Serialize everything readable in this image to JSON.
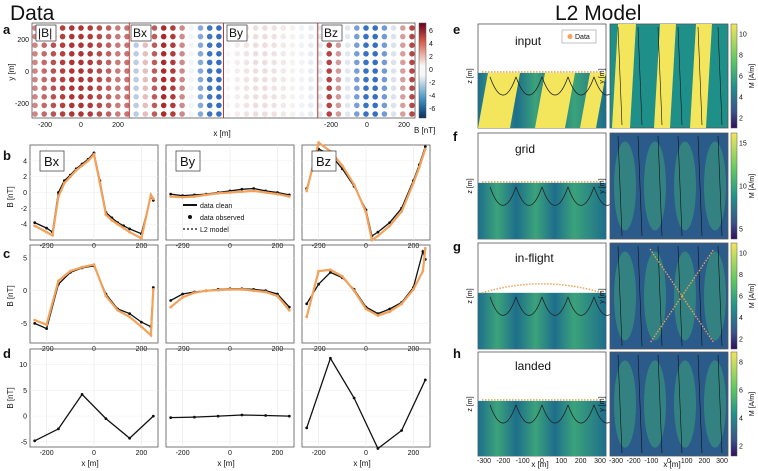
{
  "headers": {
    "left": "Data",
    "right": "L2 Model"
  },
  "panel_letters": [
    "a",
    "b",
    "c",
    "d",
    "e",
    "f",
    "g",
    "h"
  ],
  "panel_a": {
    "insets": [
      "|B|",
      "Bx",
      "By",
      "Bz"
    ],
    "ylabel": "y [m]",
    "xlabel": "x [m]",
    "colorbar_label": "B [nT]",
    "colorbar_ticks": [
      "6",
      "4",
      "2",
      "0",
      "-2",
      "-4",
      "-6"
    ],
    "x_ticks": [
      "-200",
      "0",
      "200",
      "-200",
      "0",
      "200"
    ],
    "y_ticks": [
      "200",
      "0",
      "-200"
    ]
  },
  "rows_bcd": {
    "ylabel": "B [nT]",
    "xlabel": "x [m]",
    "x_ticks": [
      "-200",
      "0",
      "200"
    ],
    "components": [
      "Bx",
      "By",
      "Bz"
    ],
    "legend": [
      "data clean",
      "data observed",
      "L2 model"
    ],
    "b_yticks": [
      "0",
      "-2",
      "-4",
      "2",
      "4"
    ],
    "c_yticks": [
      "5",
      "0",
      "-5"
    ],
    "d_yticks": [
      "10",
      "5",
      "0",
      "-5"
    ]
  },
  "model_panels": {
    "labels": [
      "input",
      "grid",
      "in-flight",
      "landed"
    ],
    "legend_data": "Data",
    "zlabel": "z [m]",
    "ylabel": "y [m]",
    "xlabel": "x [m]",
    "colorbar_label": "M [A/m]",
    "x_ticks": [
      "-300",
      "-200",
      "-100",
      "0",
      "100",
      "200",
      "300"
    ],
    "cbar_ticks": [
      [
        "10",
        "8",
        "6",
        "4",
        "2"
      ],
      [
        "15",
        "10",
        "5"
      ],
      [
        "10",
        "8",
        "6",
        "4",
        "2"
      ],
      [
        "8",
        "6",
        "4",
        "2"
      ]
    ]
  },
  "chart_data": [
    {
      "type": "line",
      "title": "Bx",
      "panel": "b",
      "xlabel": "",
      "ylabel": "B [nT]",
      "xlim": [
        -270,
        270
      ],
      "ylim": [
        -6,
        6
      ],
      "x": [
        -250,
        -200,
        -175,
        -150,
        -125,
        -100,
        -75,
        -50,
        -25,
        0,
        25,
        50,
        75,
        100,
        125,
        150,
        200,
        240,
        250
      ],
      "series": [
        {
          "name": "data clean",
          "values": [
            -3.8,
            -4.5,
            -5.0,
            0.0,
            1.5,
            2.2,
            3.0,
            3.6,
            4.2,
            5.0,
            1.5,
            -2.5,
            -3.2,
            -3.8,
            -4.2,
            -4.6,
            -5.2,
            -0.5,
            -1.0
          ]
        },
        {
          "name": "L2 model",
          "values": [
            -4.2,
            -5.0,
            -5.4,
            -0.5,
            1.2,
            2.0,
            2.8,
            3.4,
            4.0,
            4.8,
            1.2,
            -2.8,
            -3.5,
            -4.0,
            -4.5,
            -5.0,
            -5.8,
            -0.3,
            -0.8
          ]
        }
      ]
    },
    {
      "type": "line",
      "title": "By",
      "panel": "b",
      "xlim": [
        -270,
        270
      ],
      "ylim": [
        -6,
        6
      ],
      "x": [
        -250,
        -200,
        -150,
        -100,
        -50,
        0,
        50,
        100,
        150,
        200,
        250
      ],
      "series": [
        {
          "name": "data clean",
          "values": [
            -0.2,
            -0.4,
            -0.3,
            -0.2,
            0.0,
            0.2,
            0.4,
            0.5,
            0.2,
            0.0,
            -0.3
          ]
        },
        {
          "name": "L2 model",
          "values": [
            -0.5,
            -0.6,
            -0.5,
            -0.3,
            -0.1,
            0.0,
            0.1,
            0.2,
            0.0,
            -0.2,
            -0.5
          ]
        }
      ]
    },
    {
      "type": "line",
      "title": "Bz",
      "panel": "b",
      "xlim": [
        -270,
        270
      ],
      "ylim": [
        -6,
        6
      ],
      "x": [
        -250,
        -200,
        -150,
        -100,
        -50,
        0,
        25,
        50,
        100,
        150,
        200,
        225,
        250
      ],
      "series": [
        {
          "name": "data clean",
          "values": [
            0.5,
            5.5,
            4.8,
            3.0,
            0.8,
            -2.2,
            -5.5,
            -5.0,
            -3.8,
            -2.0,
            1.5,
            3.5,
            5.8
          ]
        },
        {
          "name": "L2 model",
          "values": [
            0.2,
            6.3,
            5.2,
            3.4,
            1.0,
            -2.5,
            -6.0,
            -5.5,
            -4.2,
            -2.4,
            1.2,
            3.2,
            5.5
          ]
        }
      ]
    },
    {
      "type": "line",
      "title": "Bx",
      "panel": "c",
      "xlim": [
        -270,
        270
      ],
      "ylim": [
        -8,
        7
      ],
      "x": [
        -250,
        -200,
        -150,
        -100,
        -50,
        0,
        50,
        100,
        150,
        200,
        240,
        250
      ],
      "series": [
        {
          "name": "data clean",
          "values": [
            -5.0,
            -5.8,
            1.0,
            2.8,
            3.5,
            3.8,
            -0.5,
            -2.8,
            -3.5,
            -4.8,
            -5.5,
            0.5
          ]
        },
        {
          "name": "L2 model",
          "values": [
            -4.5,
            -5.2,
            1.5,
            3.0,
            3.6,
            4.0,
            -0.8,
            -3.0,
            -4.0,
            -5.5,
            -6.8,
            0.2
          ]
        }
      ]
    },
    {
      "type": "line",
      "title": "By",
      "panel": "c",
      "xlim": [
        -270,
        270
      ],
      "ylim": [
        -8,
        7
      ],
      "x": [
        -250,
        -200,
        -150,
        -100,
        -50,
        0,
        50,
        100,
        150,
        200,
        250
      ],
      "series": [
        {
          "name": "data clean",
          "values": [
            -1.5,
            -0.5,
            -0.2,
            0.0,
            0.2,
            0.3,
            0.3,
            0.2,
            0.0,
            -0.5,
            -2.5
          ]
        },
        {
          "name": "L2 model",
          "values": [
            -2.5,
            -1.0,
            -0.3,
            0.0,
            0.1,
            0.2,
            0.2,
            0.0,
            -0.2,
            -0.8,
            -3.0
          ]
        }
      ]
    },
    {
      "type": "line",
      "title": "Bz",
      "panel": "c",
      "xlim": [
        -270,
        270
      ],
      "ylim": [
        -8,
        7
      ],
      "x": [
        -250,
        -200,
        -150,
        -100,
        -50,
        0,
        50,
        100,
        150,
        200,
        240,
        250
      ],
      "series": [
        {
          "name": "data clean",
          "values": [
            -2.0,
            1.0,
            2.8,
            2.0,
            0.2,
            -2.5,
            -3.5,
            -2.8,
            -1.8,
            0.5,
            6.0,
            4.8
          ]
        },
        {
          "name": "L2 model",
          "values": [
            -4.0,
            3.0,
            3.2,
            2.2,
            0.0,
            -2.8,
            -3.8,
            -3.2,
            -2.0,
            0.2,
            3.0,
            6.5
          ]
        }
      ]
    },
    {
      "type": "line",
      "title": "Bx",
      "panel": "d",
      "xlim": [
        -270,
        270
      ],
      "ylim": [
        -6,
        13
      ],
      "x": [
        -250,
        -150,
        -50,
        50,
        150,
        250
      ],
      "series": [
        {
          "name": "data clean",
          "values": [
            -4.8,
            -2.5,
            4.2,
            -0.5,
            -4.3,
            0.0
          ]
        }
      ]
    },
    {
      "type": "line",
      "title": "By",
      "panel": "d",
      "xlim": [
        -270,
        270
      ],
      "ylim": [
        -6,
        13
      ],
      "x": [
        -250,
        -150,
        -50,
        50,
        150,
        250
      ],
      "series": [
        {
          "name": "data clean",
          "values": [
            -0.3,
            -0.2,
            0.0,
            0.2,
            0.1,
            0.0
          ]
        }
      ]
    },
    {
      "type": "line",
      "title": "Bz",
      "panel": "d",
      "xlim": [
        -270,
        270
      ],
      "ylim": [
        -6,
        13
      ],
      "x": [
        -250,
        -150,
        -50,
        50,
        150,
        250
      ],
      "series": [
        {
          "name": "data clean",
          "values": [
            -2.3,
            11.2,
            3.5,
            -6.3,
            -2.8,
            7.0
          ]
        }
      ]
    }
  ],
  "colors": {
    "data_clean": "#111111",
    "l2_model": "#f2a25a",
    "map_red": "#b2182b",
    "map_blue": "#2166ac",
    "field_low": "#2f0f5d",
    "field_mid": "#1f8f8a",
    "field_high": "#f3e55c"
  }
}
